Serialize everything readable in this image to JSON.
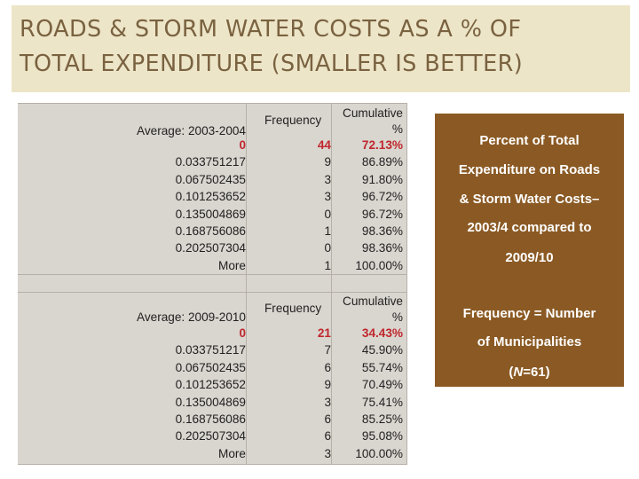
{
  "title": {
    "line1": "ROADS & STORM WATER COSTS AS A % OF",
    "line2": "TOTAL EXPENDITURE (SMALLER IS BETTER)"
  },
  "table1": {
    "label": "Average: 2003-2004",
    "frequency_header": "Frequency",
    "cumulative_header_line1": "Cumulative",
    "cumulative_header_line2": "%",
    "rows": [
      {
        "bin": "0",
        "freq": "44",
        "cum": "72.13%"
      },
      {
        "bin": "0.033751217",
        "freq": "9",
        "cum": "86.89%"
      },
      {
        "bin": "0.067502435",
        "freq": "3",
        "cum": "91.80%"
      },
      {
        "bin": "0.101253652",
        "freq": "3",
        "cum": "96.72%"
      },
      {
        "bin": "0.135004869",
        "freq": "0",
        "cum": "96.72%"
      },
      {
        "bin": "0.168756086",
        "freq": "1",
        "cum": "98.36%"
      },
      {
        "bin": "0.202507304",
        "freq": "0",
        "cum": "98.36%"
      },
      {
        "bin": "More",
        "freq": "1",
        "cum": "100.00%"
      }
    ]
  },
  "table2": {
    "label": "Average:  2009-2010",
    "frequency_header": "Frequency",
    "cumulative_header_line1": "Cumulative",
    "cumulative_header_line2": "%",
    "rows": [
      {
        "bin": "0",
        "freq": "21",
        "cum": "34.43%"
      },
      {
        "bin": "0.033751217",
        "freq": "7",
        "cum": "45.90%"
      },
      {
        "bin": "0.067502435",
        "freq": "6",
        "cum": "55.74%"
      },
      {
        "bin": "0.101253652",
        "freq": "9",
        "cum": "70.49%"
      },
      {
        "bin": "0.135004869",
        "freq": "3",
        "cum": "75.41%"
      },
      {
        "bin": "0.168756086",
        "freq": "6",
        "cum": "85.25%"
      },
      {
        "bin": "0.202507304",
        "freq": "6",
        "cum": "95.08%"
      },
      {
        "bin": "More",
        "freq": "3",
        "cum": "100.00%"
      }
    ]
  },
  "side_box": {
    "line1": "Percent of Total",
    "line2": "Expenditure on Roads",
    "line3": "& Storm Water Costs–",
    "line4": "2003/4 compared to",
    "line5": "2009/10",
    "line6": "Frequency = Number",
    "line7": "of Municipalities",
    "line8_prefix": "(",
    "line8_italic": "N",
    "line8_suffix": "=61)"
  },
  "colors": {
    "title_band": "#ede5c8",
    "title_text": "#7a6240",
    "table_bg": "#d9d5cf",
    "highlight_text": "#c0272d",
    "side_box": "#8b5a24"
  }
}
